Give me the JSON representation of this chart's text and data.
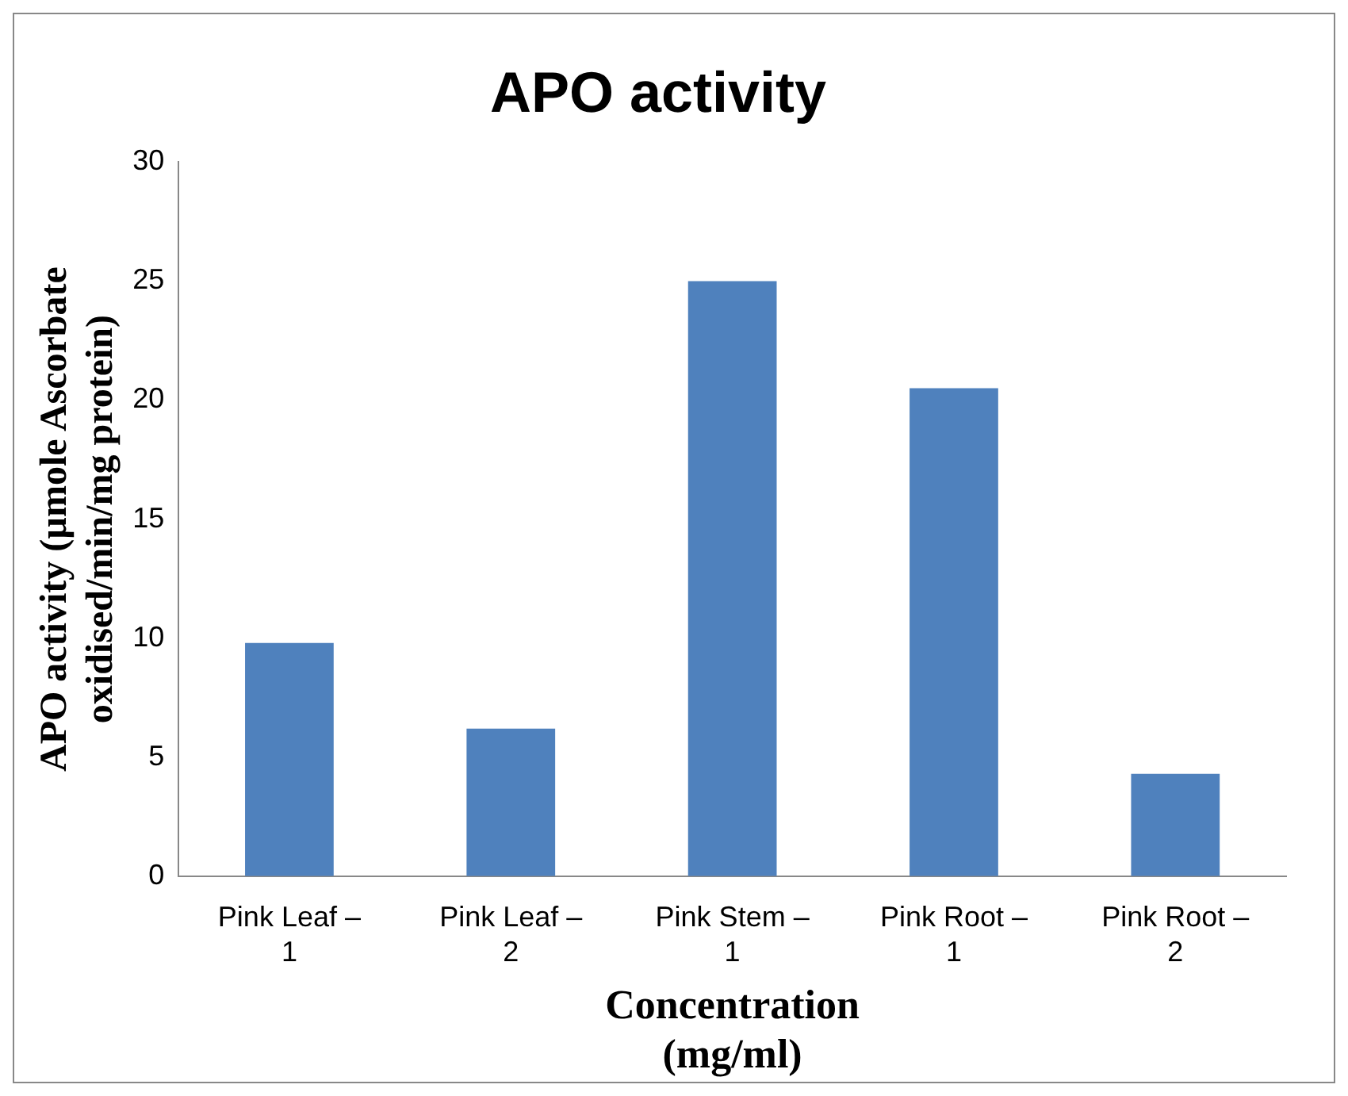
{
  "chart_data": {
    "type": "bar",
    "title": "APO activity",
    "xlabel": "Concentration\n(mg/ml)",
    "ylabel": "APO activity (µmole Ascorbate\noxidised/min/mg protein)",
    "categories": [
      "Pink Leaf –\n1",
      "Pink Leaf –\n2",
      "Pink Stem –\n1",
      "Pink Root –\n1",
      "Pink Root –\n2"
    ],
    "values": [
      9.8,
      6.2,
      25,
      20.5,
      4.3
    ],
    "color": "#4f81bd",
    "ylim": [
      0,
      30
    ],
    "yticks": [
      0,
      5,
      10,
      15,
      20,
      25,
      30
    ],
    "grid": false,
    "legend": false
  }
}
